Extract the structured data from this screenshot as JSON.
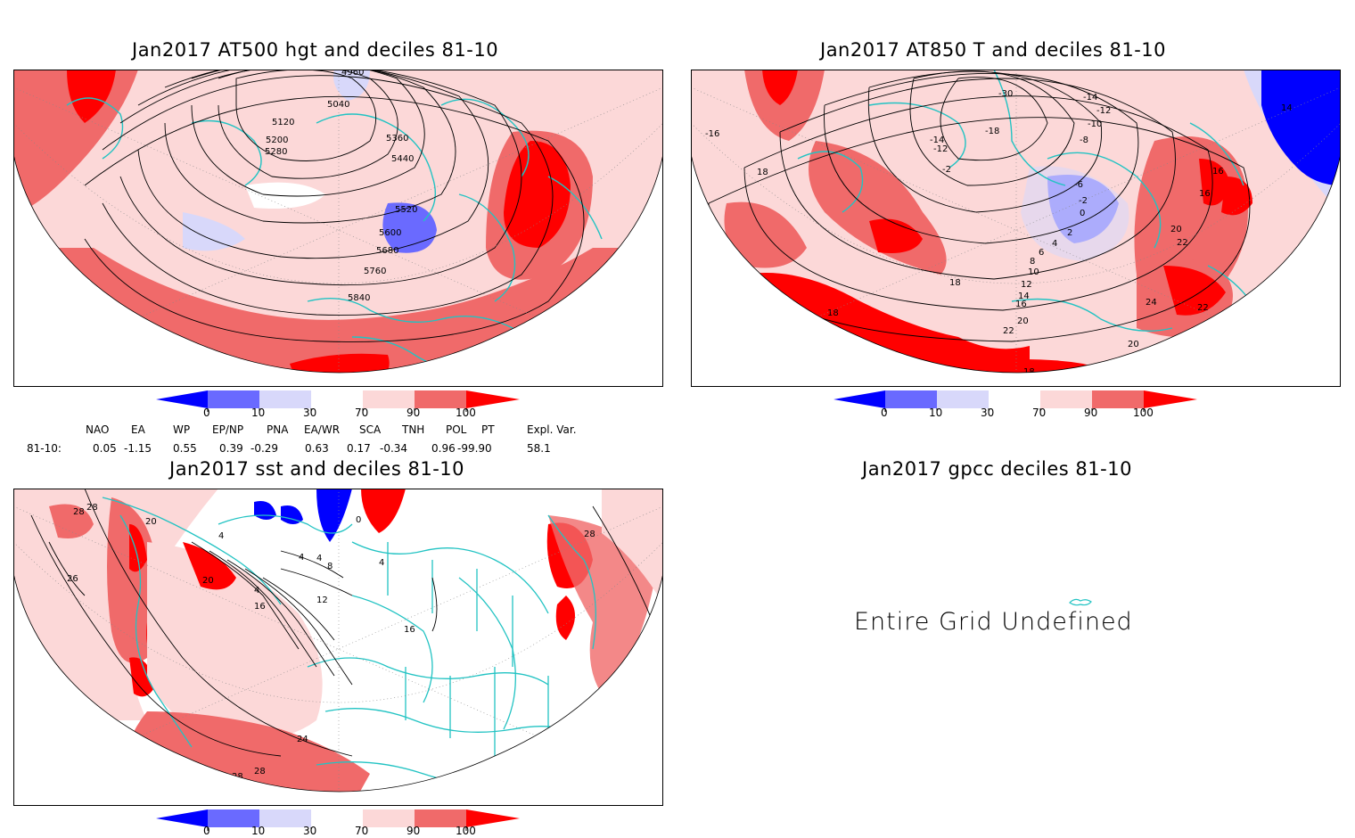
{
  "panels": {
    "hgt": {
      "title": "Jan2017 AT500 hgt and deciles 81-10",
      "contour_labels": [
        "4960",
        "5040",
        "5120",
        "5200",
        "5280",
        "5360",
        "5440",
        "5520",
        "5600",
        "5680",
        "5760",
        "5840"
      ]
    },
    "t850": {
      "title": "Jan2017 AT850 T and deciles 81-10",
      "contour_labels": [
        "-16",
        "-14",
        "-12",
        "-10",
        "-8",
        "-30",
        "-18",
        "-14",
        "-12",
        "-2",
        "-6",
        "-2",
        "0",
        "2",
        "4",
        "6",
        "8",
        "10",
        "12",
        "14",
        "16",
        "18",
        "20",
        "22",
        "24",
        "14",
        "16",
        "16",
        "18",
        "18",
        "20",
        "22",
        "22",
        "20",
        "18"
      ]
    },
    "sst": {
      "title": "Jan2017 sst and deciles 81-10",
      "contour_labels": [
        "28",
        "28",
        "20",
        "26",
        "20",
        "0",
        "4",
        "4",
        "8",
        "4",
        "4",
        "12",
        "16",
        "16",
        "24",
        "28",
        "28",
        "28",
        "4"
      ]
    },
    "gpcc": {
      "title": "Jan2017 gpcc deciles 81-10",
      "message": "Entire Grid Undefined"
    }
  },
  "colorbar": {
    "ticks": [
      "0",
      "10",
      "30",
      "70",
      "90",
      "100"
    ],
    "colors": [
      "#0000ff",
      "#6a6aff",
      "#d8d8fa",
      "#ffffff",
      "#fcd8d8",
      "#f06a6a",
      "#ff0000"
    ]
  },
  "indices": {
    "row_label": "81-10:",
    "names": [
      "NAO",
      "EA",
      "WP",
      "EP/NP",
      "PNA",
      "EA/WR",
      "SCA",
      "TNH",
      "POL",
      "PT",
      "Expl. Var."
    ],
    "values": [
      "0.05",
      "-1.15",
      "0.55",
      "0.39",
      "-0.29",
      "0.63",
      "0.17",
      "-0.34",
      "0.96",
      "-99.90",
      "58.1"
    ]
  },
  "colors": {
    "land_outline": "#22c3c3",
    "strong_pos": "#ff0000",
    "mod_pos": "#f06a6a",
    "weak_pos": "#fcd8d8",
    "weak_neg": "#d8d8fa",
    "mod_neg": "#6a6aff",
    "strong_neg": "#0000ff",
    "contour": "#000000"
  }
}
